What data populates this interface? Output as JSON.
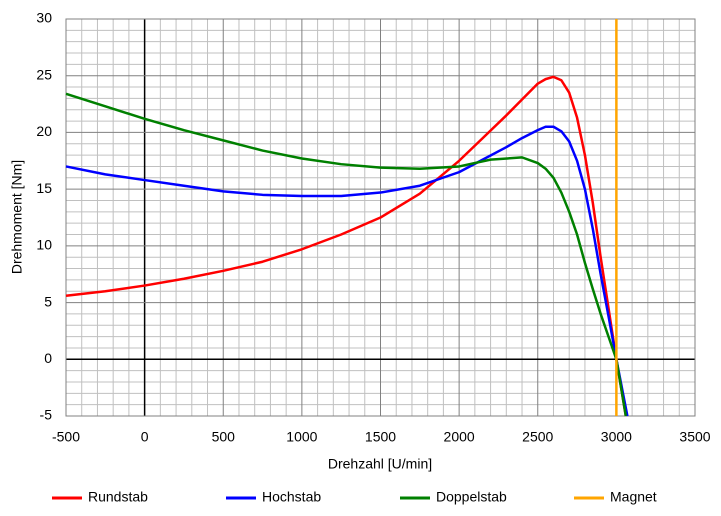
{
  "chart_data": {
    "type": "line",
    "xlabel": "Drehzahl [U/min]",
    "ylabel": "Drehmoment [Nm]",
    "xlim": [
      -500,
      3500
    ],
    "xticks": [
      -500,
      0,
      500,
      1000,
      1500,
      2000,
      2500,
      3000,
      3500
    ],
    "ylim": [
      -5,
      30
    ],
    "yticks": [
      -5,
      0,
      5,
      10,
      15,
      20,
      25,
      30
    ],
    "grid": true,
    "legend": "bottom",
    "series": [
      {
        "name": "Rundstab",
        "color": "#ff0000",
        "x": [
          -500,
          -250,
          0,
          250,
          500,
          750,
          1000,
          1250,
          1500,
          1750,
          2000,
          2150,
          2300,
          2400,
          2500,
          2550,
          2600,
          2650,
          2700,
          2750,
          2800,
          2850,
          2900,
          2950,
          3000,
          3060
        ],
        "values": [
          5.6,
          6.0,
          6.5,
          7.1,
          7.8,
          8.6,
          9.7,
          11.0,
          12.5,
          14.6,
          17.5,
          19.5,
          21.5,
          22.9,
          24.3,
          24.7,
          24.9,
          24.6,
          23.5,
          21.3,
          18.0,
          13.8,
          9.0,
          4.5,
          0.0,
          -5.0
        ]
      },
      {
        "name": "Hochstab",
        "color": "#0000ff",
        "x": [
          -500,
          -250,
          0,
          250,
          500,
          750,
          1000,
          1250,
          1500,
          1750,
          2000,
          2150,
          2300,
          2400,
          2500,
          2550,
          2600,
          2650,
          2700,
          2750,
          2800,
          2850,
          2900,
          2950,
          3000,
          3070
        ],
        "values": [
          17.0,
          16.3,
          15.8,
          15.3,
          14.8,
          14.5,
          14.4,
          14.4,
          14.7,
          15.3,
          16.5,
          17.6,
          18.7,
          19.5,
          20.2,
          20.5,
          20.5,
          20.1,
          19.2,
          17.5,
          15.0,
          11.5,
          7.5,
          3.8,
          0.0,
          -5.0
        ]
      },
      {
        "name": "Doppelstab",
        "color": "#008000",
        "x": [
          -500,
          -250,
          0,
          250,
          500,
          750,
          1000,
          1250,
          1500,
          1750,
          2000,
          2200,
          2400,
          2500,
          2550,
          2600,
          2650,
          2700,
          2750,
          2800,
          2850,
          2900,
          2950,
          3000,
          3060
        ],
        "values": [
          23.4,
          22.3,
          21.2,
          20.2,
          19.3,
          18.4,
          17.7,
          17.2,
          16.9,
          16.8,
          17.0,
          17.6,
          17.8,
          17.3,
          16.8,
          16.0,
          14.7,
          13.0,
          11.0,
          8.5,
          6.2,
          4.0,
          2.0,
          0.0,
          -5.0
        ]
      },
      {
        "name": "Magnet",
        "color": "#ffa500",
        "x": [
          3000,
          3000
        ],
        "values": [
          -5,
          30
        ]
      }
    ]
  }
}
